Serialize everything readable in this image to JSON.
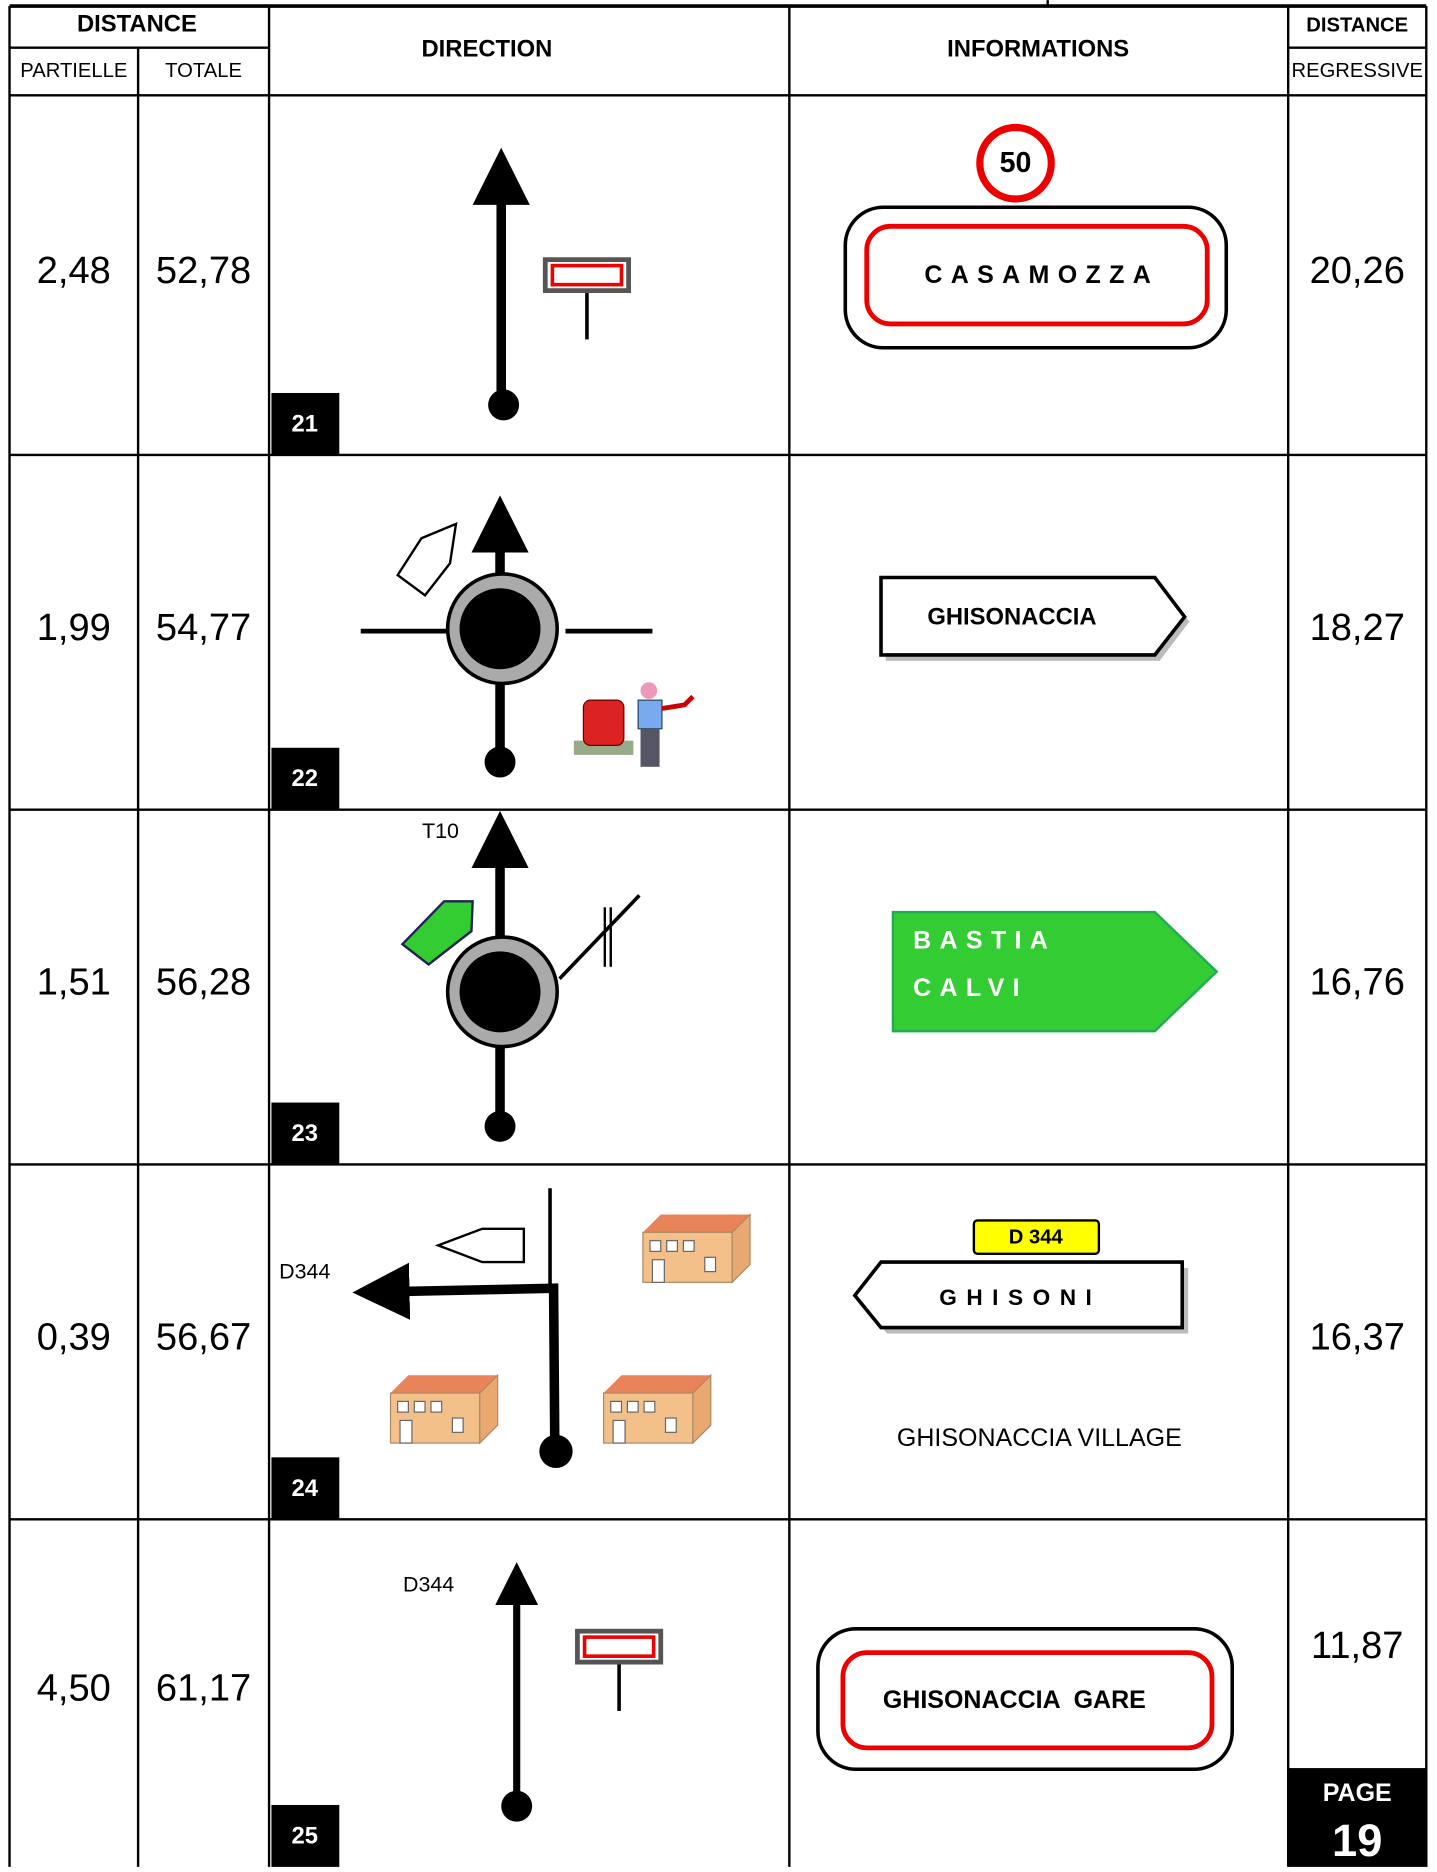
{
  "header": {
    "distance": "DISTANCE",
    "partielle": "PARTIELLE",
    "totale": "TOTALE",
    "direction": "DIRECTION",
    "informations": "INFORMATIONS",
    "distance_regressive": "DISTANCE",
    "regressive": "REGRESSIVE"
  },
  "rows": [
    {
      "partielle": "2,48",
      "totale": "52,78",
      "number": "21",
      "regressive": "20,26",
      "info": {
        "speed_limit": "50",
        "sign": "CASAMOZZA"
      }
    },
    {
      "partielle": "1,99",
      "totale": "54,77",
      "number": "22",
      "regressive": "18,27",
      "info": {
        "sign": "GHISONACCIA"
      }
    },
    {
      "partielle": "1,51",
      "totale": "56,28",
      "number": "23",
      "regressive": "16,76",
      "direction_label": "T10",
      "info": {
        "sign_lines": [
          "BASTIA",
          "CALVI"
        ]
      }
    },
    {
      "partielle": "0,39",
      "totale": "56,67",
      "number": "24",
      "regressive": "16,37",
      "direction_label": "D344",
      "info": {
        "route": "D 344",
        "sign": "GHISONI",
        "place": "GHISONACCIA VILLAGE"
      }
    },
    {
      "partielle": "4,50",
      "totale": "61,17",
      "number": "25",
      "regressive": "11,87",
      "direction_label": "D344",
      "info": {
        "sign": "GHISONACCIA  GARE"
      }
    }
  ],
  "page": {
    "label": "PAGE",
    "number": "19"
  }
}
